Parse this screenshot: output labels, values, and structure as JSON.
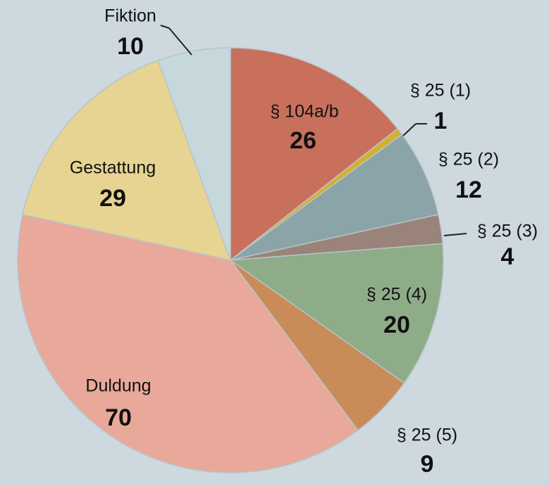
{
  "chart_data": {
    "type": "pie",
    "categories": [
      "§ 104a/b",
      "§ 25 (1)",
      "§ 25 (2)",
      "§ 25 (3)",
      "§ 25 (4)",
      "§ 25 (5)",
      "Duldung",
      "Gestattung",
      "Fiktion"
    ],
    "values": [
      26,
      1,
      12,
      4,
      20,
      9,
      70,
      29,
      10
    ],
    "colors": [
      "#c8705c",
      "#d4b032",
      "#8aa4a8",
      "#9a847a",
      "#8fac88",
      "#c98c58",
      "#e8a99a",
      "#e7d492",
      "#c6d8dc"
    ]
  }
}
